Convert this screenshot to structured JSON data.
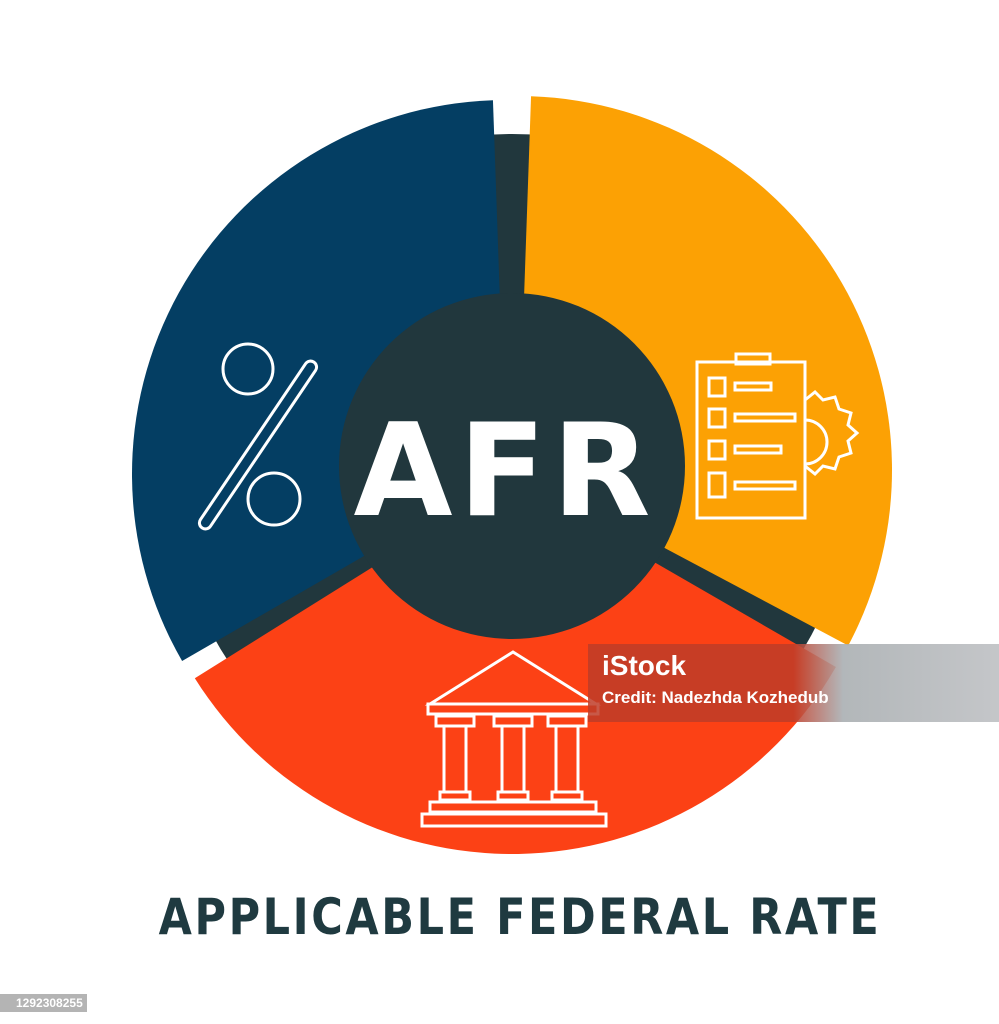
{
  "center_label": "AFR",
  "title": "APPLICABLE FEDERAL RATE",
  "segments": [
    {
      "color": "#043e63",
      "icon": "percent-icon"
    },
    {
      "color": "#fca104",
      "icon": "clipboard-gear-icon"
    },
    {
      "color": "#fc4115",
      "icon": "bank-building-icon"
    }
  ],
  "center_color": "#21373d",
  "watermark": {
    "logo": "iStock",
    "credit": "Credit: Nadezhda Kozhedub"
  },
  "image_id": "1292308255"
}
